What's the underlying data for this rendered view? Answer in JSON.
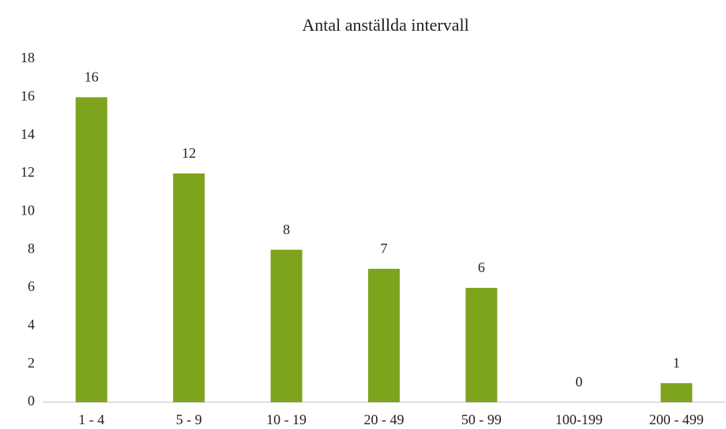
{
  "chart_data": {
    "type": "bar",
    "title": "Antal anställda intervall",
    "categories": [
      "1 - 4",
      "5 - 9",
      "10 - 19",
      "20 - 49",
      "50 - 99",
      "100-199",
      "200 - 499"
    ],
    "values": [
      16,
      12,
      8,
      7,
      6,
      0,
      1
    ],
    "color": "#7ea31d",
    "ylim": [
      0,
      18
    ],
    "yticks": [
      0,
      2,
      4,
      6,
      8,
      10,
      12,
      14,
      16,
      18
    ],
    "grid": false,
    "data_labels": true
  }
}
